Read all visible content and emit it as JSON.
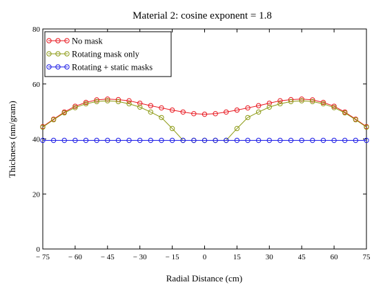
{
  "chart_data": {
    "type": "line",
    "title": "Material 2: cosine exponent = 1.8",
    "xlabel": "Radial Distance (cm)",
    "ylabel": "Thickness (nm/gram)",
    "xlim": [
      -75,
      75
    ],
    "ylim": [
      0,
      80
    ],
    "xticks": [
      -75,
      -60,
      -45,
      -30,
      -15,
      0,
      15,
      30,
      45,
      60,
      75
    ],
    "xtick_labels": [
      "− 75",
      "− 60",
      "− 45",
      "− 30",
      "− 15",
      "0",
      "15",
      "30",
      "45",
      "60",
      "75"
    ],
    "yticks": [
      0,
      20,
      40,
      60,
      80
    ],
    "grid": false,
    "legend_position": "top-left",
    "series": [
      {
        "name": "No mask",
        "color": "#e8141c",
        "x": [
          -75,
          -70,
          -65,
          -60,
          -55,
          -50,
          -45,
          -40,
          -35,
          -30,
          -25,
          -20,
          -15,
          -10,
          -5,
          0,
          5,
          10,
          15,
          20,
          25,
          30,
          35,
          40,
          45,
          50,
          55,
          60,
          65,
          70,
          75
        ],
        "y": [
          44.5,
          47.2,
          49.8,
          51.9,
          53.3,
          54.2,
          54.5,
          54.3,
          53.9,
          53.0,
          52.1,
          51.3,
          50.5,
          49.8,
          49.2,
          49.0,
          49.2,
          49.8,
          50.5,
          51.3,
          52.1,
          53.0,
          53.9,
          54.3,
          54.5,
          54.2,
          53.3,
          51.9,
          49.8,
          47.2,
          44.5
        ]
      },
      {
        "name": "Rotating mask only",
        "color": "#8c9a14",
        "x": [
          -75,
          -70,
          -65,
          -60,
          -55,
          -50,
          -45,
          -40,
          -35,
          -30,
          -25,
          -20,
          -15,
          -10,
          -5,
          0,
          5,
          10,
          15,
          20,
          25,
          30,
          35,
          40,
          45,
          50,
          55,
          60,
          65,
          70,
          75
        ],
        "y": [
          44.3,
          47.0,
          49.5,
          51.4,
          52.8,
          53.6,
          53.9,
          53.6,
          52.8,
          51.6,
          49.8,
          47.8,
          43.8,
          39.5,
          39.5,
          39.5,
          39.5,
          39.5,
          43.8,
          47.8,
          49.8,
          51.6,
          52.8,
          53.6,
          53.9,
          53.6,
          52.8,
          51.4,
          49.5,
          47.0,
          44.3
        ]
      },
      {
        "name": "Rotating + static masks",
        "color": "#1a1ae6",
        "x": [
          -75,
          -70,
          -65,
          -60,
          -55,
          -50,
          -45,
          -40,
          -35,
          -30,
          -25,
          -20,
          -15,
          -10,
          -5,
          0,
          5,
          10,
          15,
          20,
          25,
          30,
          35,
          40,
          45,
          50,
          55,
          60,
          65,
          70,
          75
        ],
        "y": [
          39.5,
          39.5,
          39.5,
          39.5,
          39.5,
          39.5,
          39.5,
          39.5,
          39.5,
          39.5,
          39.5,
          39.5,
          39.5,
          39.5,
          39.5,
          39.5,
          39.5,
          39.5,
          39.5,
          39.5,
          39.5,
          39.5,
          39.5,
          39.5,
          39.5,
          39.5,
          39.5,
          39.5,
          39.5,
          39.5,
          39.5
        ]
      }
    ]
  }
}
